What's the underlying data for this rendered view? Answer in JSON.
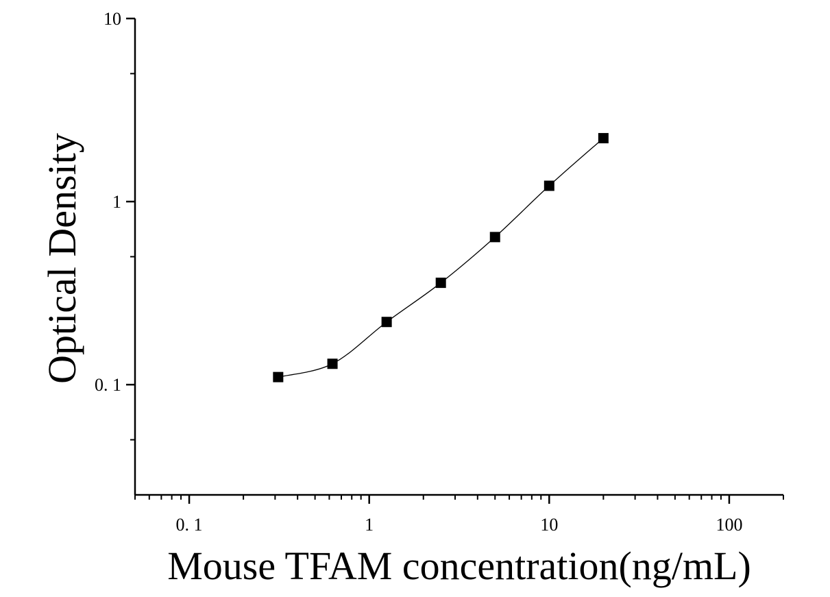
{
  "chart_data": {
    "type": "scatter",
    "title": "",
    "xlabel": "Mouse TFAM concentration(ng/mL)",
    "ylabel": "Optical Density",
    "x_scale": "log",
    "y_scale": "log",
    "xlim": [
      0.05,
      200
    ],
    "ylim": [
      0.025,
      10
    ],
    "x_ticks": [
      {
        "value": 0.1,
        "label": "0. 1"
      },
      {
        "value": 1,
        "label": "1"
      },
      {
        "value": 10,
        "label": "10"
      },
      {
        "value": 100,
        "label": "100"
      }
    ],
    "y_ticks": [
      {
        "value": 0.1,
        "label": "0. 1"
      },
      {
        "value": 1,
        "label": "1"
      },
      {
        "value": 10,
        "label": "10"
      }
    ],
    "grid": false,
    "legend": "none",
    "marker": "square",
    "series": [
      {
        "x": [
          0.312,
          0.625,
          1.25,
          2.5,
          5,
          10,
          20
        ],
        "y": [
          0.11,
          0.13,
          0.22,
          0.36,
          0.64,
          1.22,
          2.22
        ],
        "fit_curve": true
      }
    ],
    "colors": {
      "marker": "#000000",
      "line": "#000000",
      "axis": "#000000"
    }
  }
}
